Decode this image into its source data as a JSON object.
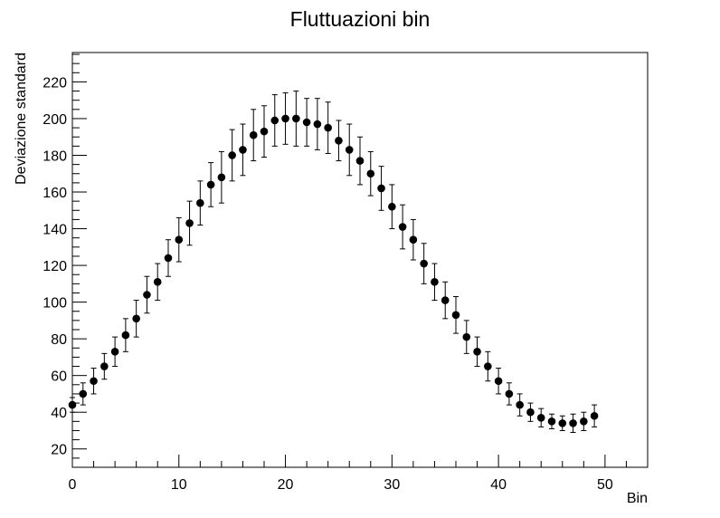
{
  "chart_data": {
    "type": "scatter",
    "title": "Fluttuazioni bin",
    "xlabel": "Bin",
    "ylabel": "Deviazione standard",
    "xlim": [
      0,
      54
    ],
    "ylim": [
      10,
      236
    ],
    "xticks": [
      0,
      10,
      20,
      30,
      40,
      50
    ],
    "yticks": [
      20,
      40,
      60,
      80,
      100,
      120,
      140,
      160,
      180,
      200,
      220
    ],
    "grid": false,
    "legend": "none",
    "marker_color": "#000000",
    "series": [
      {
        "x": [
          0,
          1,
          2,
          3,
          4,
          5,
          6,
          7,
          8,
          9,
          10,
          11,
          12,
          13,
          14,
          15,
          16,
          17,
          18,
          19,
          20,
          21,
          22,
          23,
          24,
          25,
          26,
          27,
          28,
          29,
          30,
          31,
          32,
          33,
          34,
          35,
          36,
          37,
          38,
          39,
          40,
          41,
          42,
          43,
          44,
          45,
          46,
          47,
          48,
          49
        ],
        "y": [
          44,
          50,
          57,
          65,
          73,
          82,
          91,
          104,
          111,
          124,
          134,
          143,
          154,
          164,
          168,
          180,
          183,
          191,
          193,
          199,
          200,
          200,
          198,
          197,
          195,
          188,
          183,
          177,
          170,
          162,
          152,
          141,
          134,
          121,
          111,
          101,
          93,
          81,
          73,
          65,
          57,
          50,
          44,
          40,
          37,
          35,
          34,
          34,
          35,
          38
        ],
        "error": [
          4,
          6,
          7,
          7,
          8,
          9,
          10,
          10,
          10,
          10,
          12,
          12,
          12,
          12,
          14,
          14,
          14,
          14,
          14,
          14,
          14,
          15,
          13,
          14,
          14,
          11,
          14,
          13,
          12,
          12,
          12,
          12,
          11,
          11,
          10,
          10,
          10,
          9,
          8,
          8,
          7,
          6,
          6,
          5,
          5,
          4,
          4,
          5,
          5,
          6
        ]
      }
    ]
  }
}
